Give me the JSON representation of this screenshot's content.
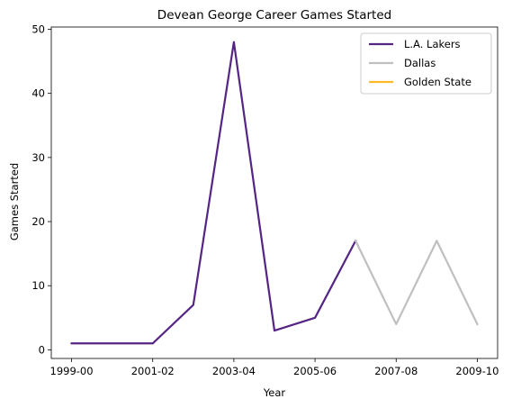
{
  "chart_data": {
    "type": "line",
    "title": "Devean George Career Games Started",
    "xlabel": "Year",
    "ylabel": "Games Started",
    "categories": [
      "1999-00",
      "2000-01",
      "2001-02",
      "2002-03",
      "2003-04",
      "2004-05",
      "2005-06",
      "2006-07",
      "2007-08",
      "2008-09",
      "2009-10"
    ],
    "x_tick_labels": [
      "1999-00",
      "2001-02",
      "2003-04",
      "2005-06",
      "2007-08",
      "2009-10"
    ],
    "y_ticks": [
      0,
      10,
      20,
      30,
      40,
      50
    ],
    "ylim": [
      -1.35,
      50.35
    ],
    "grid": false,
    "legend_position": "top-right",
    "series": [
      {
        "name": "L.A. Lakers",
        "color": "#552583",
        "values": [
          1,
          1,
          1,
          7,
          48,
          3,
          5,
          17,
          null,
          null,
          null
        ]
      },
      {
        "name": "Dallas",
        "color": "#bfbfbf",
        "values": [
          null,
          null,
          null,
          null,
          null,
          null,
          null,
          17,
          4,
          17,
          4
        ]
      },
      {
        "name": "Golden State",
        "color": "#fdb927",
        "values": [
          null,
          null,
          null,
          null,
          null,
          null,
          null,
          null,
          null,
          null,
          null
        ]
      }
    ]
  }
}
